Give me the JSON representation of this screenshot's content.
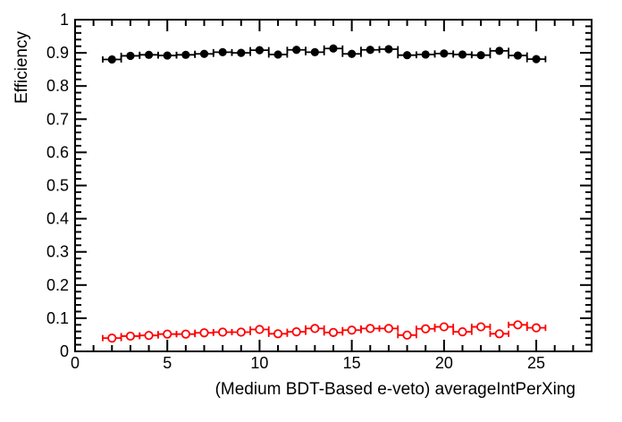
{
  "chart_data": {
    "type": "scatter",
    "title": "",
    "xlabel": "(Medium BDT-Based e-veto) averageIntPerXing",
    "ylabel": "Efficiency",
    "xlim": [
      0,
      28
    ],
    "ylim": [
      0,
      1
    ],
    "grid": false,
    "legend": null,
    "background": "#ffffff",
    "axis_color": "#000000",
    "x_tick_values": [
      0,
      5,
      10,
      15,
      20,
      25
    ],
    "x_tick_labels": [
      "0",
      "5",
      "10",
      "15",
      "20",
      "25"
    ],
    "x_minor_tick_step": 1,
    "y_tick_values": [
      0,
      0.1,
      0.2,
      0.3,
      0.4,
      0.5,
      0.6,
      0.7,
      0.8,
      0.9,
      1
    ],
    "y_tick_labels": [
      "0",
      "0.1",
      "0.2",
      "0.3",
      "0.4",
      "0.5",
      "0.6",
      "0.7",
      "0.8",
      "0.9",
      "1"
    ],
    "y_minor_tick_step": 0.02,
    "x": [
      2,
      3,
      4,
      5,
      6,
      7,
      8,
      9,
      10,
      11,
      12,
      13,
      14,
      15,
      16,
      17,
      18,
      19,
      20,
      21,
      22,
      23,
      24,
      25
    ],
    "xerr": 0.5,
    "series": [
      {
        "name": "black-filled-circles",
        "marker": "filled-circle",
        "color": "#000000",
        "values": [
          0.88,
          0.891,
          0.894,
          0.892,
          0.894,
          0.897,
          0.902,
          0.9,
          0.908,
          0.895,
          0.909,
          0.902,
          0.913,
          0.897,
          0.909,
          0.911,
          0.893,
          0.895,
          0.898,
          0.895,
          0.893,
          0.906,
          0.892,
          0.881
        ]
      },
      {
        "name": "red-open-circles",
        "marker": "open-circle",
        "color": "#ff0000",
        "values": [
          0.04,
          0.046,
          0.048,
          0.052,
          0.052,
          0.056,
          0.058,
          0.058,
          0.066,
          0.053,
          0.059,
          0.069,
          0.057,
          0.064,
          0.069,
          0.069,
          0.049,
          0.068,
          0.074,
          0.059,
          0.074,
          0.053,
          0.08,
          0.071
        ]
      }
    ]
  }
}
